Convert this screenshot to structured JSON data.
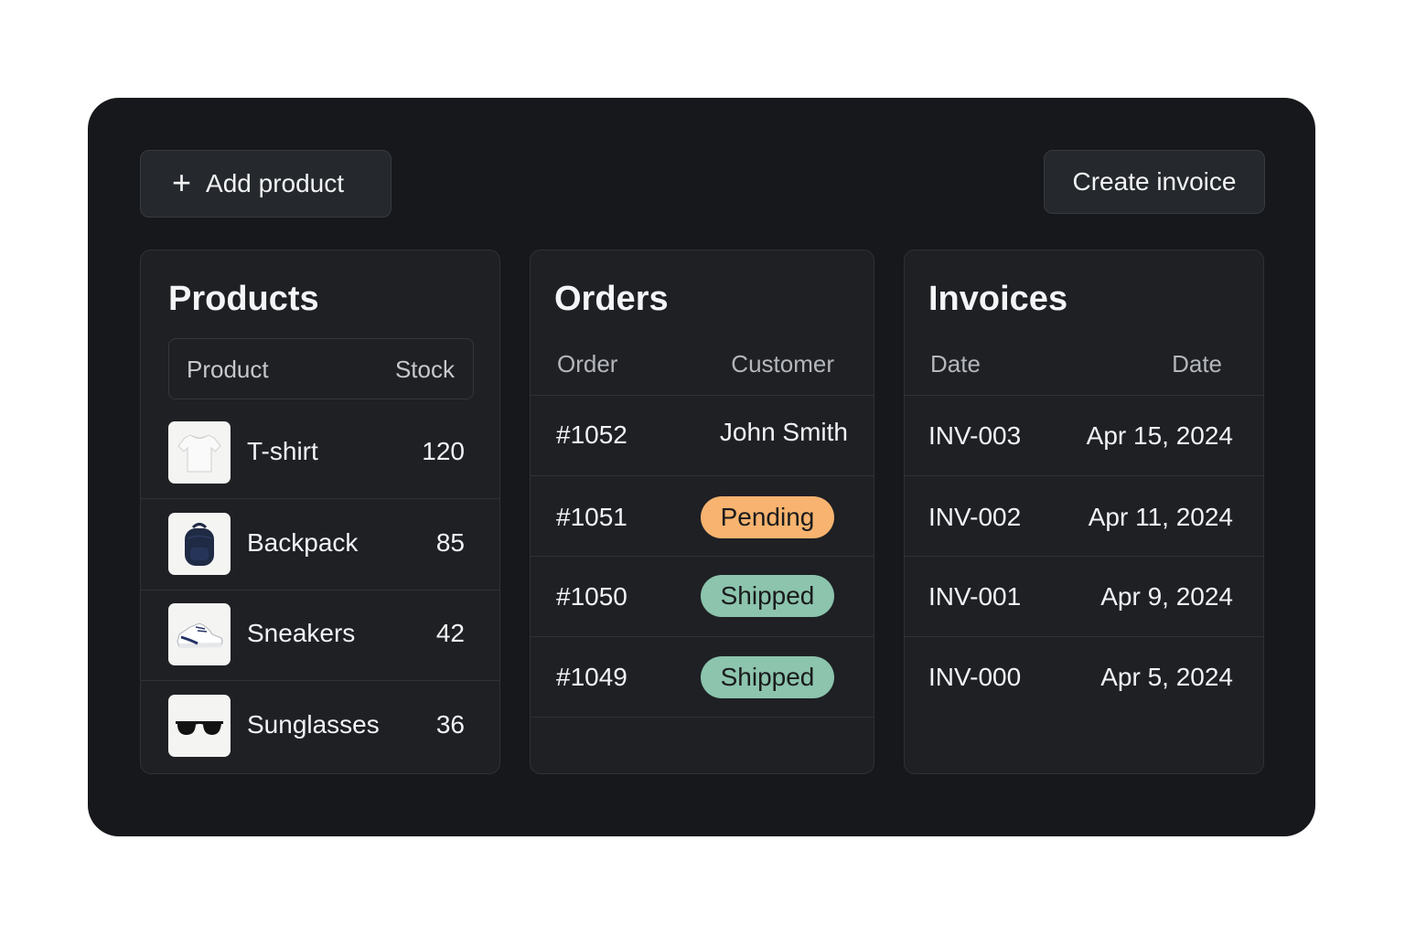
{
  "toolbar": {
    "add_icon": "plus-icon",
    "add_label": "Add product",
    "invoice_label": "Create invoice"
  },
  "products": {
    "title": "Products",
    "columns": [
      "Product",
      "Stock"
    ],
    "items": [
      {
        "name": "T-shirt",
        "stock": "120",
        "icon": "tshirt-image"
      },
      {
        "name": "Backpack",
        "stock": "85",
        "icon": "backpack-image"
      },
      {
        "name": "Sneakers",
        "stock": "42",
        "icon": "sneaker-image"
      },
      {
        "name": "Sunglasses",
        "stock": "36",
        "icon": "sunglasses-image"
      }
    ]
  },
  "orders": {
    "title": "Orders",
    "columns": [
      "Order",
      "Customer"
    ],
    "items": [
      {
        "id": "#1052",
        "customer": "John Smith"
      },
      {
        "id": "#1051",
        "status": "Pending",
        "status_color": "#f7b36f"
      },
      {
        "id": "#1050",
        "status": "Shipped",
        "status_color": "#8cc4ad"
      },
      {
        "id": "#1049",
        "status": "Shipped",
        "status_color": "#8cc4ad"
      }
    ]
  },
  "invoices": {
    "title": "Invoices",
    "columns": [
      "Date",
      "Date"
    ],
    "items": [
      {
        "id": "INV-003",
        "date": "Apr 15, 2024"
      },
      {
        "id": "INV-002",
        "date": "Apr 11, 2024"
      },
      {
        "id": "INV-001",
        "date": "Apr 9, 2024"
      },
      {
        "id": "INV-000",
        "date": "Apr 5, 2024"
      }
    ]
  },
  "colors": {
    "background": "#17181b",
    "panel": "#1e2024",
    "pending": "#f7b36f",
    "shipped": "#8cc4ad"
  }
}
